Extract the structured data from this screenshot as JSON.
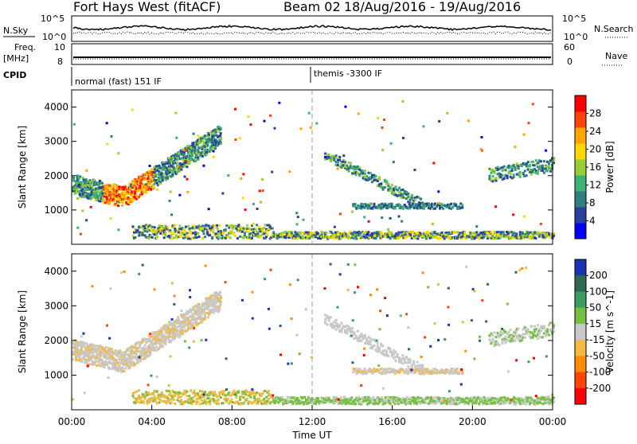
{
  "header": {
    "site": "Fort Hays West (fitACF)",
    "beam": "Beam 02",
    "dates": "18/Aug/2016 - 19/Aug/2016"
  },
  "strip1": {
    "left_label": "N.Sky",
    "right_label": "N.Search",
    "left_ticks": [
      "10^5",
      "10^0"
    ],
    "right_ticks": [
      "10^5",
      "10^0"
    ]
  },
  "strip2": {
    "left_label_top": "Freq.",
    "left_label_unit": "[MHz]",
    "right_label": "Nave",
    "left_ticks": [
      "10",
      "8"
    ],
    "right_ticks": [
      "60",
      "0"
    ]
  },
  "strip3": {
    "left_label": "CPID",
    "mode1": "normal (fast) 151 IF",
    "mode2": "themis -3300 IF"
  },
  "chart_data": [
    {
      "type": "heatmap",
      "name": "power",
      "ylabel": "Slant Range [km]",
      "yticks": [
        "1000",
        "2000",
        "3000",
        "4000"
      ],
      "ylim": [
        0,
        4500
      ],
      "colorbar_label": "Power [dB]",
      "colorbar_ticks": [
        "4",
        "8",
        "12",
        "16",
        "20",
        "24",
        "28"
      ],
      "colors": [
        "#0000ff",
        "#2b3f9e",
        "#2e7f7f",
        "#3cb371",
        "#9acd32",
        "#ffd700",
        "#ffa500",
        "#ff4500",
        "#ff0000"
      ]
    },
    {
      "type": "heatmap",
      "name": "velocity",
      "ylabel": "Slant Range [km]",
      "yticks": [
        "1000",
        "2000",
        "3000",
        "4000"
      ],
      "ylim": [
        0,
        4500
      ],
      "xlabel": "Time UT",
      "xticks": [
        "00:00",
        "04:00",
        "08:00",
        "12:00",
        "16:00",
        "20:00",
        "00:00"
      ],
      "xlim": [
        0,
        24
      ],
      "colorbar_label": "Velocity [m s^-1]",
      "colorbar_ticks": [
        "200",
        "100",
        "50",
        "15",
        "-15",
        "-50",
        "-100",
        "-200"
      ],
      "colors": [
        "#1a33b3",
        "#2d6a4f",
        "#3a9d5d",
        "#74c043",
        "#c8c8c8",
        "#f4b942",
        "#ff8c00",
        "#ff4500",
        "#ff0000"
      ]
    }
  ]
}
